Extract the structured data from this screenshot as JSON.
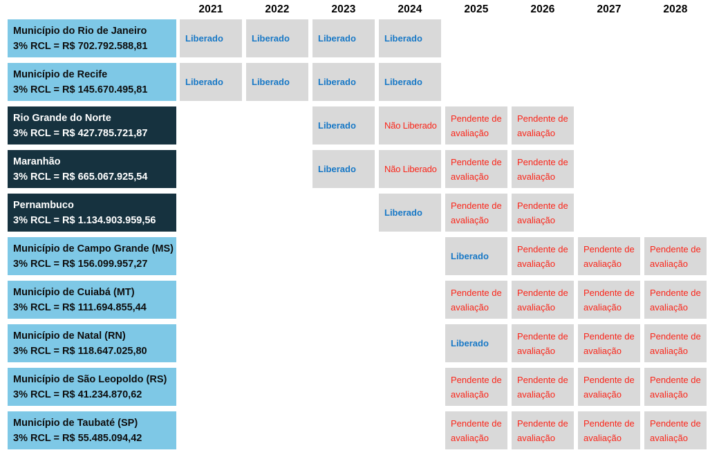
{
  "colors": {
    "municipality_row_bg": "#7EC8E6",
    "state_row_bg": "#16323F",
    "status_cell_bg": "#D9D9D9",
    "liberado_text": "#1778C6",
    "nao_liberado_text": "#FA2519",
    "pendente_text": "#FA2519",
    "municipality_label_text": "#0D0D0D",
    "state_label_text": "#FFFFFF",
    "year_header_text": "#000000",
    "page_bg": "#FFFFFF"
  },
  "chart_data": {
    "type": "table",
    "title": "",
    "columns": [
      "2021",
      "2022",
      "2023",
      "2024",
      "2025",
      "2026",
      "2027",
      "2028"
    ],
    "status_values": {
      "liberado": "Liberado",
      "nao_liberado": "Não Liberado",
      "pendente": "Pendente de avaliação"
    },
    "rows": [
      {
        "entity": "Município do Rio de Janeiro",
        "rcl_line": "3% RCL = R$ 702.792.588,81",
        "entity_type": "municipality",
        "cells": [
          "liberado",
          "liberado",
          "liberado",
          "liberado",
          null,
          null,
          null,
          null
        ]
      },
      {
        "entity": "Município de Recife",
        "rcl_line": "3% RCL = R$ 145.670.495,81",
        "entity_type": "municipality",
        "cells": [
          "liberado",
          "liberado",
          "liberado",
          "liberado",
          null,
          null,
          null,
          null
        ]
      },
      {
        "entity": "Rio Grande do Norte",
        "rcl_line": "3% RCL = R$ 427.785.721,87",
        "entity_type": "state",
        "cells": [
          null,
          null,
          "liberado",
          "nao_liberado",
          "pendente",
          "pendente",
          null,
          null
        ]
      },
      {
        "entity": "Maranhão",
        "rcl_line": "3% RCL = R$ 665.067.925,54",
        "entity_type": "state",
        "cells": [
          null,
          null,
          "liberado",
          "nao_liberado",
          "pendente",
          "pendente",
          null,
          null
        ]
      },
      {
        "entity": "Pernambuco",
        "rcl_line": "3% RCL = R$ 1.134.903.959,56",
        "entity_type": "state",
        "cells": [
          null,
          null,
          null,
          "liberado",
          "pendente",
          "pendente",
          null,
          null
        ]
      },
      {
        "entity": "Município de Campo Grande (MS)",
        "rcl_line": "3% RCL = R$ 156.099.957,27",
        "entity_type": "municipality",
        "cells": [
          null,
          null,
          null,
          null,
          "liberado",
          "pendente",
          "pendente",
          "pendente"
        ]
      },
      {
        "entity": "Município de Cuiabá (MT)",
        "rcl_line": "3% RCL = R$ 111.694.855,44",
        "entity_type": "municipality",
        "cells": [
          null,
          null,
          null,
          null,
          "pendente",
          "pendente",
          "pendente",
          "pendente"
        ]
      },
      {
        "entity": "Município de Natal (RN)",
        "rcl_line": "3% RCL = R$ 118.647.025,80",
        "entity_type": "municipality",
        "cells": [
          null,
          null,
          null,
          null,
          "liberado",
          "pendente",
          "pendente",
          "pendente"
        ]
      },
      {
        "entity": "Município de São Leopoldo (RS)",
        "rcl_line": "3% RCL = R$ 41.234.870,62",
        "entity_type": "municipality",
        "cells": [
          null,
          null,
          null,
          null,
          "pendente",
          "pendente",
          "pendente",
          "pendente"
        ]
      },
      {
        "entity": "Município de Taubaté (SP)",
        "rcl_line": "3% RCL = R$ 55.485.094,42",
        "entity_type": "municipality",
        "cells": [
          null,
          null,
          null,
          null,
          "pendente",
          "pendente",
          "pendente",
          "pendente"
        ]
      }
    ]
  }
}
